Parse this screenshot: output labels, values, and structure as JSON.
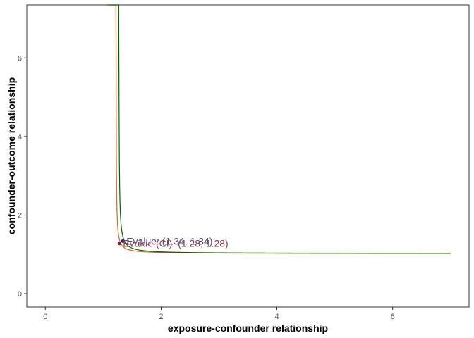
{
  "chart_data": {
    "type": "line",
    "xlabel": "exposure-confounder relationship",
    "ylabel": "confounder-outcome relationship",
    "xlim": [
      -0.32,
      7.32
    ],
    "ylim": [
      -0.34,
      7.35
    ],
    "x_ticks": [
      0,
      2,
      4,
      6
    ],
    "y_ticks": [
      0,
      2,
      4,
      6
    ],
    "grid": false,
    "series": [
      {
        "color": "#E8601C",
        "rr": 1.28,
        "x_range": [
          1.1,
          7.0
        ]
      },
      {
        "color": "#006400",
        "rr": 1.34,
        "x_range": [
          1.05,
          7.0
        ]
      }
    ],
    "points": [
      {
        "x": 1.34,
        "y": 1.34,
        "color": "#1f2d7a"
      },
      {
        "x": 1.28,
        "y": 1.28,
        "color": "#7a1f2d"
      }
    ],
    "annotations": [
      {
        "text": "Evalue: (1.34, 1.34)",
        "x": 1.34,
        "y": 1.34,
        "color": "#4a5080"
      },
      {
        "text": "Evalue (CI): (1.28, 1.28)",
        "x": 1.28,
        "y": 1.28,
        "color": "#8b3a4a"
      }
    ]
  }
}
